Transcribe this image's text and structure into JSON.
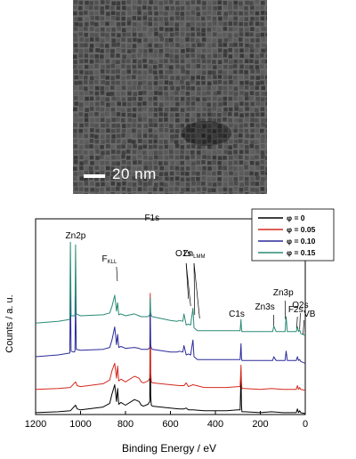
{
  "tem_image": {
    "scale_bar_label": "20 nm"
  },
  "chart_data": {
    "type": "line",
    "xlabel": "Binding Energy / eV",
    "ylabel": "Counts / a. u.",
    "xlim": [
      1200,
      0
    ],
    "x_reversed": true,
    "x_ticks": [
      1200,
      1000,
      800,
      600,
      400,
      200,
      0
    ],
    "y_ticks_shown": false,
    "legend_position": "top-right",
    "series": [
      {
        "name": "φ = 0",
        "color": "#000000",
        "offset": 0,
        "x": [
          1200,
          1100,
          1045,
          1030,
          1022,
          1015,
          1000,
          900,
          870,
          860,
          848,
          840,
          835,
          830,
          820,
          800,
          760,
          740,
          730,
          720,
          700,
          692,
          690,
          688,
          685,
          680,
          600,
          560,
          540,
          530,
          520,
          500,
          450,
          400,
          350,
          300,
          290,
          286,
          284,
          282,
          278,
          270,
          200,
          150,
          100,
          80,
          50,
          40,
          35,
          30,
          25,
          20,
          0
        ],
        "y": [
          0.2,
          0.3,
          0.4,
          0.8,
          1.0,
          0.6,
          0.5,
          0.8,
          1.2,
          2.2,
          3.2,
          1.4,
          2.8,
          1.1,
          1.3,
          1.0,
          1.6,
          1.4,
          1.0,
          0.9,
          1.1,
          1.4,
          12,
          2.0,
          1.0,
          0.9,
          0.7,
          0.6,
          0.6,
          0.7,
          0.5,
          0.5,
          0.4,
          0.4,
          0.4,
          0.5,
          0.5,
          4.3,
          1.0,
          0.3,
          0.3,
          0.3,
          0.2,
          0.3,
          0.2,
          0.2,
          0.2,
          0.2,
          0.6,
          0.2,
          0.4,
          0.2,
          0.1
        ]
      },
      {
        "name": "φ = 0.05",
        "color": "#d42a1e",
        "offset": 2.5,
        "x": [
          1200,
          1100,
          1045,
          1030,
          1022,
          1015,
          1000,
          900,
          870,
          860,
          848,
          840,
          835,
          830,
          820,
          800,
          760,
          740,
          730,
          720,
          700,
          692,
          690,
          688,
          685,
          680,
          600,
          560,
          540,
          530,
          520,
          500,
          450,
          400,
          350,
          300,
          290,
          286,
          284,
          282,
          278,
          270,
          200,
          150,
          100,
          80,
          50,
          40,
          35,
          30,
          25,
          20,
          0
        ],
        "y": [
          0.2,
          0.3,
          0.4,
          0.8,
          1.0,
          0.6,
          0.5,
          0.8,
          1.2,
          2.2,
          3.0,
          1.4,
          2.7,
          1.1,
          1.3,
          1.0,
          1.6,
          1.4,
          1.0,
          0.9,
          1.1,
          1.4,
          10.5,
          2.0,
          1.0,
          0.9,
          0.7,
          0.6,
          0.6,
          0.9,
          0.5,
          0.7,
          0.4,
          0.4,
          0.4,
          0.5,
          0.5,
          2.8,
          1.0,
          0.3,
          0.3,
          0.3,
          0.2,
          0.3,
          0.2,
          0.2,
          0.2,
          0.2,
          0.6,
          0.2,
          0.4,
          0.2,
          0.1
        ]
      },
      {
        "name": "φ = 0.10",
        "color": "#2a2a9a",
        "offset": 5.2,
        "x": [
          1200,
          1100,
          1048,
          1045,
          1042,
          1030,
          1025,
          1022,
          1019,
          1000,
          900,
          870,
          860,
          848,
          840,
          835,
          830,
          820,
          800,
          760,
          740,
          730,
          720,
          700,
          692,
          690,
          688,
          685,
          680,
          600,
          570,
          560,
          545,
          540,
          530,
          520,
          510,
          500,
          495,
          490,
          485,
          480,
          470,
          450,
          400,
          350,
          300,
          290,
          286,
          284,
          282,
          278,
          270,
          200,
          150,
          145,
          140,
          130,
          100,
          95,
          90,
          85,
          80,
          50,
          40,
          35,
          30,
          25,
          20,
          0
        ],
        "y": [
          1.0,
          1.2,
          1.4,
          8.2,
          1.6,
          1.5,
          1.6,
          7.5,
          1.8,
          1.7,
          1.8,
          2.0,
          2.8,
          4.2,
          2.3,
          3.4,
          2.0,
          2.1,
          1.9,
          2.0,
          1.9,
          1.8,
          1.8,
          1.8,
          2.0,
          6.5,
          2.3,
          1.9,
          1.8,
          1.5,
          1.5,
          1.6,
          1.5,
          2.2,
          1.2,
          1.3,
          1.2,
          2.8,
          1.0,
          0.9,
          0.8,
          0.7,
          0.7,
          0.7,
          0.7,
          0.7,
          0.7,
          0.7,
          2.4,
          0.9,
          0.6,
          0.6,
          0.6,
          0.6,
          0.6,
          0.6,
          1.0,
          0.6,
          0.6,
          0.6,
          0.6,
          1.6,
          0.6,
          0.6,
          0.6,
          1.0,
          0.6,
          0.7,
          0.5,
          0.3
        ]
      },
      {
        "name": "φ = 0.15",
        "color": "#2a8a76",
        "offset": 8.0,
        "x": [
          1200,
          1100,
          1048,
          1045,
          1042,
          1030,
          1025,
          1022,
          1019,
          1000,
          900,
          870,
          860,
          848,
          840,
          835,
          830,
          820,
          800,
          760,
          740,
          730,
          720,
          700,
          692,
          690,
          688,
          685,
          680,
          600,
          570,
          560,
          545,
          540,
          530,
          520,
          510,
          500,
          495,
          490,
          485,
          480,
          470,
          450,
          400,
          350,
          300,
          290,
          286,
          284,
          282,
          278,
          270,
          200,
          150,
          145,
          140,
          130,
          100,
          95,
          90,
          85,
          80,
          50,
          40,
          35,
          30,
          25,
          20,
          0
        ],
        "y": [
          1.8,
          2.0,
          2.2,
          10.5,
          2.6,
          2.6,
          2.6,
          10.2,
          2.8,
          2.6,
          2.7,
          2.9,
          3.6,
          4.8,
          3.1,
          4.0,
          2.7,
          2.8,
          2.6,
          2.8,
          2.6,
          2.5,
          2.5,
          2.5,
          2.7,
          4.5,
          3.0,
          2.6,
          2.5,
          2.1,
          2.0,
          2.1,
          2.0,
          2.8,
          1.6,
          1.7,
          1.6,
          3.4,
          1.3,
          1.2,
          1.1,
          1.0,
          1.0,
          1.0,
          1.0,
          1.0,
          1.0,
          1.0,
          2.2,
          1.2,
          0.9,
          0.9,
          0.9,
          0.9,
          0.9,
          0.9,
          1.5,
          0.9,
          0.9,
          0.9,
          0.9,
          2.5,
          0.9,
          0.9,
          0.9,
          1.4,
          0.9,
          1.1,
          0.7,
          0.5
        ]
      }
    ],
    "annotations": [
      {
        "text": "Zn2p",
        "x": 1022
      },
      {
        "text": "F1s",
        "x": 690
      },
      {
        "text": "F",
        "sub": "KLL",
        "x": 840
      },
      {
        "text": "O1s",
        "x": 530
      },
      {
        "text": "Zn",
        "sub": "LMM",
        "x": 495
      },
      {
        "text": "C1s",
        "x": 285
      },
      {
        "text": "Zn3s",
        "x": 140
      },
      {
        "text": "Zn3p",
        "x": 90
      },
      {
        "text": "F2s",
        "x": 35
      },
      {
        "text": "O2s",
        "x": 22
      },
      {
        "text": "VB",
        "x": 5
      }
    ]
  }
}
